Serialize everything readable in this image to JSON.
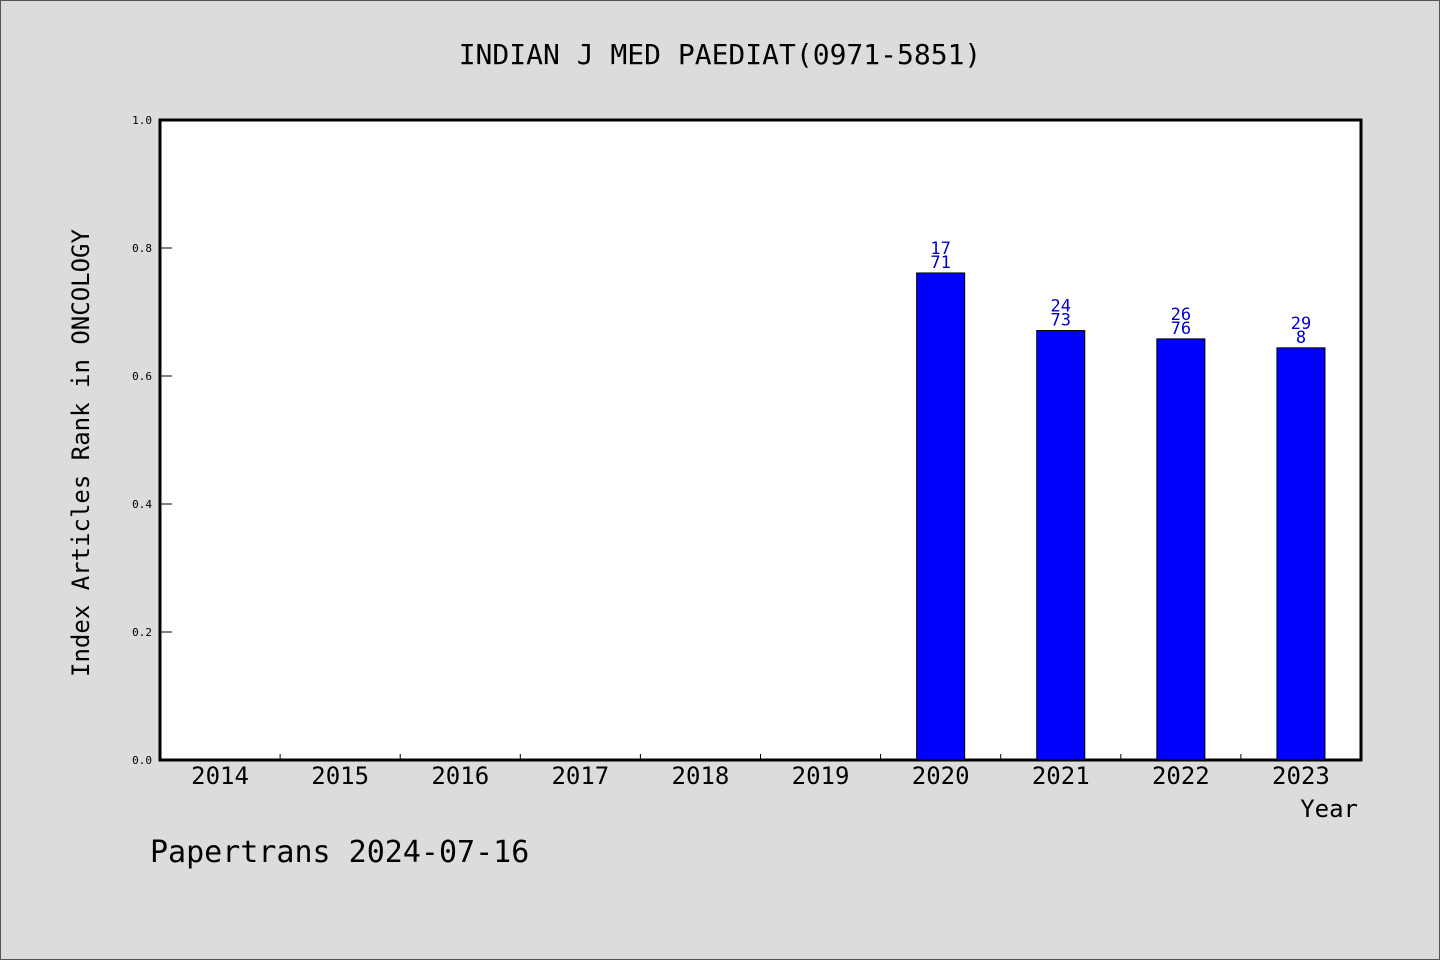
{
  "chart_data": {
    "type": "bar",
    "title": "INDIAN J MED PAEDIAT(0971-5851)",
    "xlabel": "Year",
    "ylabel": "Index Articles Rank in ONCOLOGY",
    "ylim": [
      0,
      1.0
    ],
    "yticks": [
      "0.0",
      "0.2",
      "0.4",
      "0.6",
      "0.8",
      "1.0"
    ],
    "categories": [
      "2014",
      "2015",
      "2016",
      "2017",
      "2018",
      "2019",
      "2020",
      "2021",
      "2022",
      "2023"
    ],
    "values": [
      null,
      null,
      null,
      null,
      null,
      null,
      0.761,
      0.671,
      0.658,
      0.644
    ],
    "bar_labels": [
      null,
      null,
      null,
      null,
      null,
      null,
      [
        "17",
        "71"
      ],
      [
        "24",
        "73"
      ],
      [
        "26",
        "76"
      ],
      [
        "29",
        "8"
      ]
    ],
    "bar_color": "#0000ff",
    "label_color": "#0000cc",
    "grid": false
  },
  "footer": "Papertrans 2024-07-16"
}
